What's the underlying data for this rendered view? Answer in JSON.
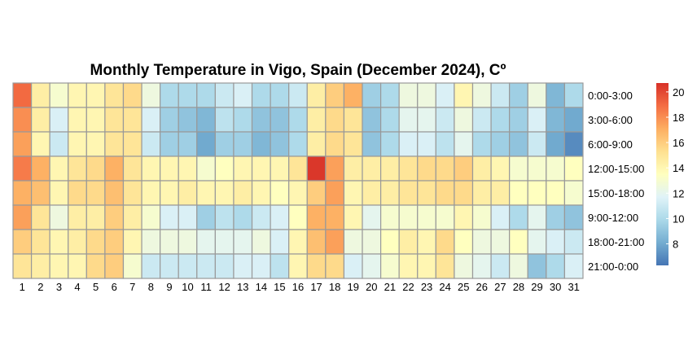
{
  "chart_data": {
    "type": "heatmap",
    "title": "Monthly Temperature in Vigo, Spain (December 2024), Cº",
    "x": [
      "1",
      "2",
      "3",
      "4",
      "5",
      "6",
      "7",
      "8",
      "9",
      "10",
      "11",
      "12",
      "13",
      "14",
      "15",
      "16",
      "17",
      "18",
      "19",
      "20",
      "21",
      "22",
      "23",
      "24",
      "25",
      "26",
      "27",
      "28",
      "29",
      "30",
      "31"
    ],
    "rows": [
      "0:00-3:00",
      "3:00-6:00",
      "6:00-9:00",
      "12:00-15:00",
      "15:00-18:00",
      "9:00-12:00",
      "18:00-21:00",
      "21:00-0:00"
    ],
    "values": [
      [
        19.0,
        14.5,
        13.0,
        14.0,
        14.0,
        15.0,
        15.5,
        12.5,
        10.0,
        10.0,
        10.0,
        11.0,
        11.5,
        10.0,
        10.0,
        11.0,
        14.5,
        16.0,
        17.0,
        9.5,
        10.0,
        12.5,
        12.5,
        11.5,
        14.0,
        12.5,
        11.0,
        9.5,
        12.5,
        8.5,
        10.0
      ],
      [
        18.0,
        14.5,
        11.5,
        14.0,
        14.0,
        15.0,
        15.0,
        11.5,
        9.5,
        9.0,
        8.5,
        10.5,
        10.0,
        9.0,
        9.0,
        10.0,
        14.5,
        15.5,
        15.0,
        9.0,
        10.0,
        12.0,
        12.0,
        11.0,
        12.5,
        11.0,
        10.0,
        9.5,
        11.5,
        8.5,
        8.0
      ],
      [
        17.5,
        14.0,
        11.0,
        14.0,
        14.0,
        15.0,
        15.0,
        11.0,
        9.5,
        9.5,
        8.0,
        9.5,
        9.5,
        8.5,
        9.0,
        10.0,
        14.5,
        15.5,
        15.0,
        9.0,
        10.0,
        11.5,
        11.5,
        10.5,
        12.0,
        10.0,
        9.5,
        9.0,
        11.0,
        8.0,
        7.0
      ],
      [
        18.5,
        17.0,
        14.0,
        15.0,
        15.5,
        17.0,
        15.0,
        14.0,
        14.0,
        14.0,
        13.0,
        13.5,
        14.0,
        14.0,
        14.0,
        15.0,
        20.5,
        17.5,
        14.5,
        14.5,
        14.5,
        15.0,
        15.5,
        15.5,
        16.0,
        14.5,
        14.0,
        13.0,
        13.0,
        13.0,
        13.5
      ],
      [
        17.0,
        16.5,
        14.0,
        15.5,
        15.5,
        16.5,
        15.0,
        14.0,
        14.0,
        14.5,
        14.0,
        14.0,
        14.5,
        14.0,
        13.5,
        14.0,
        16.0,
        17.5,
        14.0,
        14.5,
        14.5,
        15.0,
        15.0,
        15.5,
        15.5,
        14.5,
        14.5,
        13.5,
        13.5,
        13.5,
        13.0
      ],
      [
        17.5,
        15.0,
        12.5,
        14.5,
        14.5,
        16.0,
        14.5,
        13.0,
        11.5,
        11.5,
        9.5,
        10.5,
        10.0,
        11.0,
        11.5,
        13.5,
        17.0,
        17.0,
        14.0,
        12.0,
        13.0,
        13.0,
        13.0,
        13.0,
        14.0,
        13.0,
        11.5,
        10.0,
        12.0,
        9.5,
        9.0
      ],
      [
        16.0,
        15.0,
        14.0,
        14.5,
        15.5,
        16.0,
        14.0,
        12.5,
        12.5,
        12.5,
        12.0,
        12.0,
        12.0,
        12.5,
        11.5,
        14.0,
        16.5,
        17.5,
        12.5,
        12.5,
        13.5,
        14.5,
        14.0,
        15.5,
        13.5,
        12.5,
        12.5,
        13.5,
        12.0,
        11.5,
        11.0
      ],
      [
        15.0,
        14.5,
        14.0,
        14.0,
        15.5,
        16.0,
        13.0,
        11.0,
        11.0,
        11.0,
        11.0,
        11.0,
        11.5,
        11.5,
        10.5,
        14.0,
        15.5,
        15.5,
        11.5,
        12.0,
        13.0,
        14.0,
        14.0,
        15.0,
        12.5,
        12.0,
        11.0,
        12.5,
        9.0,
        10.0,
        11.5
      ]
    ],
    "legend": {
      "ticks": [
        8,
        10,
        12,
        14,
        16,
        18,
        20
      ],
      "range": [
        6.3,
        20.7
      ],
      "colors": [
        "#4575b4",
        "#74add1",
        "#abd9e9",
        "#e0f3f8",
        "#ffffbf",
        "#fee090",
        "#fdae61",
        "#f46d43",
        "#d73027"
      ],
      "placement": "right"
    }
  }
}
